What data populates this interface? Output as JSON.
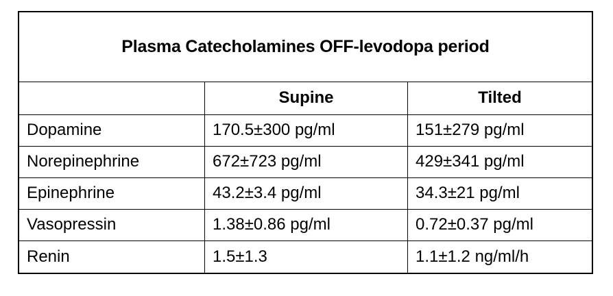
{
  "colors": {
    "background": "#ffffff",
    "border": "#000000",
    "text": "#000000"
  },
  "title": "Plasma Catecholamines OFF-levodopa period",
  "table": {
    "column_headers": [
      "",
      "Supine",
      "Tilted"
    ],
    "rows": [
      {
        "label": "Dopamine",
        "supine": "170.5±300 pg/ml",
        "tilted": "151±279 pg/ml"
      },
      {
        "label": "Norepinephrine",
        "supine": "672±723 pg/ml",
        "tilted": "429±341 pg/ml"
      },
      {
        "label": "Epinephrine",
        "supine": "43.2±3.4 pg/ml",
        "tilted": "34.3±21 pg/ml"
      },
      {
        "label": "Vasopressin",
        "supine": "1.38±0.86 pg/ml",
        "tilted": "0.72±0.37 pg/ml"
      },
      {
        "label": "Renin",
        "supine": "1.5±1.3",
        "tilted": "1.1±1.2 ng/ml/h"
      }
    ]
  }
}
